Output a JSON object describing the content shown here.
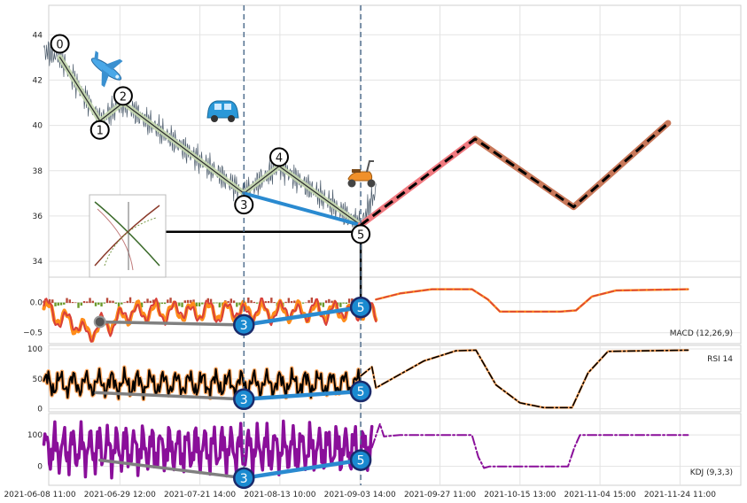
{
  "chart_data": {
    "type": "line",
    "x_ticks": [
      "2021-06-08 11:00",
      "2021-06-29 12:00",
      "2021-07-21 14:00",
      "2021-08-13 10:00",
      "2021-09-03 14:00",
      "2021-09-27 11:00",
      "2021-10-15 13:00",
      "2021-11-04 15:00",
      "2021-11-24 11:00"
    ],
    "grid": true,
    "price_panel": {
      "ylim": [
        33.3,
        45.3
      ],
      "y_ticks": [
        34,
        36,
        38,
        40,
        42,
        44
      ],
      "wave_points": [
        {
          "label": "0",
          "x": 0.25,
          "y": 43.6
        },
        {
          "label": "1",
          "x": 0.75,
          "y": 39.8
        },
        {
          "label": "2",
          "x": 1.04,
          "y": 41.3
        },
        {
          "label": "3",
          "x": 2.55,
          "y": 36.5
        },
        {
          "label": "4",
          "x": 2.99,
          "y": 38.6
        },
        {
          "label": "5",
          "x": 4.01,
          "y": 35.2
        }
      ],
      "wave_path": [
        [
          0.25,
          43.0
        ],
        [
          0.75,
          40.2
        ],
        [
          1.04,
          41.0
        ],
        [
          2.55,
          37.0
        ],
        [
          2.99,
          38.2
        ],
        [
          4.01,
          35.6
        ]
      ],
      "trend_line": [
        [
          2.55,
          37.0
        ],
        [
          4.01,
          35.6
        ]
      ],
      "support_line": {
        "y": 35.3,
        "x_start": 1.0,
        "x_end": 4.0
      },
      "projection": {
        "first_leg": [
          [
            4.01,
            35.6
          ],
          [
            5.44,
            39.4
          ]
        ],
        "second_leg": [
          [
            5.44,
            39.4
          ],
          [
            6.67,
            36.4
          ],
          [
            7.85,
            40.1
          ]
        ],
        "dashed": [
          [
            4.01,
            35.6
          ],
          [
            5.44,
            39.4
          ],
          [
            6.67,
            36.4
          ],
          [
            7.85,
            40.1
          ]
        ]
      }
    },
    "macd_panel": {
      "label": "MACD (12,26,9)",
      "ylim": [
        -0.68,
        0.42
      ],
      "y_ticks": [
        {
          "value": 0.0,
          "label": "0.0"
        },
        {
          "value": -0.5,
          "label": "−0.5"
        }
      ],
      "marker_3": {
        "label": "3",
        "x": 2.55,
        "y": -0.37
      },
      "marker_5": {
        "label": "5",
        "x": 4.01,
        "y": -0.08
      },
      "grey_line": [
        [
          0.75,
          -0.32
        ],
        [
          2.55,
          -0.37
        ]
      ],
      "blue_line": [
        [
          2.55,
          -0.37
        ],
        [
          4.01,
          -0.08
        ]
      ]
    },
    "rsi_panel": {
      "label": "RSI 14",
      "ylim": [
        -5,
        106
      ],
      "y_ticks": [
        0,
        50,
        100
      ],
      "marker_3": {
        "label": "3",
        "x": 2.55,
        "y": 16
      },
      "marker_5": {
        "label": "5",
        "x": 4.01,
        "y": 29
      },
      "grey_line": [
        [
          0.7,
          27
        ],
        [
          2.55,
          16
        ]
      ],
      "blue_line": [
        [
          2.55,
          16
        ],
        [
          4.01,
          29
        ]
      ]
    },
    "kdj_panel": {
      "label": "KDJ (9,3,3)",
      "ylim": [
        -60,
        168
      ],
      "y_ticks": [
        0,
        100
      ],
      "marker_3": {
        "label": "3",
        "x": 2.55,
        "y": -37
      },
      "marker_5": {
        "label": "5",
        "x": 4.01,
        "y": 20
      },
      "grey_line": [
        [
          0.75,
          20
        ],
        [
          2.55,
          -37
        ]
      ],
      "blue_line": [
        [
          2.55,
          -37
        ],
        [
          4.01,
          20
        ]
      ]
    },
    "colors": {
      "price": "#4a5a6a",
      "wave": "#c7d9b0",
      "trend": "#2a8ad0",
      "projection_red": "#f07a80",
      "projection_brown": "#c8785a",
      "macd_orange": "#ff8c1a",
      "macd_red": "#d9403a",
      "hist_red": "#b84a3a",
      "hist_green": "#6a9a2a",
      "rsi_orange": "#ffa860",
      "kdj_purple": "#8a0f9a",
      "marker_blue": "#1a8ad0",
      "marker_ring": "#1a2a6a",
      "grey": "#808080",
      "vline": "#4a6a8a"
    },
    "icons": [
      "airplane-icon",
      "car-icon",
      "scooter-icon",
      "wave-thumbnail-icon"
    ]
  }
}
